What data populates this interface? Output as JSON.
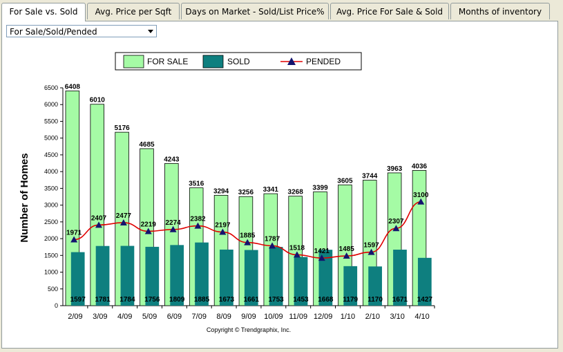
{
  "tabs": [
    {
      "label": "For Sale vs. Sold",
      "active": true
    },
    {
      "label": "Avg. Price per Sqft",
      "active": false
    },
    {
      "label": "Days on Market - Sold/List Price%",
      "active": false
    },
    {
      "label": "Avg. Price For Sale & Sold",
      "active": false
    },
    {
      "label": "Months of inventory",
      "active": false
    }
  ],
  "filter": {
    "selected": "For Sale/Sold/Pended"
  },
  "copyright": "Copyright © Trendgraphix, Inc.",
  "colors": {
    "for_sale": "#a5fba5",
    "sold": "#0e7f7f",
    "pended_line": "#e00000",
    "pended_marker": "#14146e"
  },
  "chart_data": {
    "type": "bar",
    "ylabel": "Number of Homes",
    "ylim": [
      0,
      6500
    ],
    "yticks": [
      0,
      500,
      1000,
      1500,
      2000,
      2500,
      3000,
      3500,
      4000,
      4500,
      5000,
      5500,
      6000,
      6500
    ],
    "categories": [
      "2/09",
      "3/09",
      "4/09",
      "5/09",
      "6/09",
      "7/09",
      "8/09",
      "9/09",
      "10/09",
      "11/09",
      "12/09",
      "1/10",
      "2/10",
      "3/10",
      "4/10"
    ],
    "series": [
      {
        "name": "FOR SALE",
        "type": "bar",
        "values": [
          6408,
          6010,
          5176,
          4685,
          4243,
          3516,
          3294,
          3256,
          3341,
          3268,
          3399,
          3605,
          3744,
          3963,
          4036
        ]
      },
      {
        "name": "SOLD",
        "type": "bar",
        "values": [
          1597,
          1781,
          1784,
          1756,
          1809,
          1885,
          1673,
          1661,
          1753,
          1453,
          1668,
          1179,
          1170,
          1671,
          1427
        ]
      },
      {
        "name": "PENDED",
        "type": "line",
        "values": [
          1971,
          2407,
          2477,
          2219,
          2274,
          2382,
          2197,
          1885,
          1787,
          1518,
          1421,
          1485,
          1597,
          2307,
          3100
        ]
      }
    ],
    "legend": "top"
  }
}
